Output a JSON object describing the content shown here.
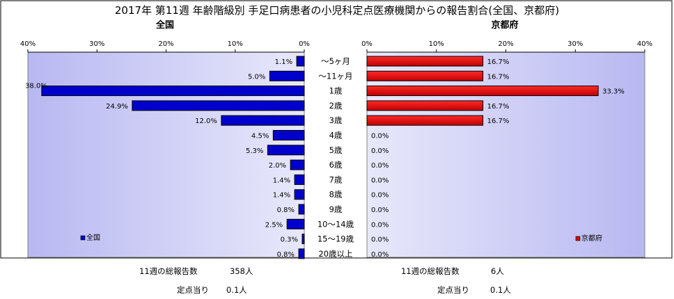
{
  "title": "2017年 第11週 年齢階級別 手足口病患者の小児科定点医療機関からの報告割合(全国、京都府)",
  "chart_data": {
    "type": "bar",
    "orientation": "horizontal",
    "categories": [
      "～5ヶ月",
      "～11ヶ月",
      "1歳",
      "2歳",
      "3歳",
      "4歳",
      "5歳",
      "6歳",
      "7歳",
      "8歳",
      "9歳",
      "10～14歳",
      "15～19歳",
      "20歳以上"
    ],
    "axis_ticks": [
      "0%",
      "10%",
      "20%",
      "30%",
      "40%"
    ],
    "xlim": [
      0,
      40
    ],
    "grid": false,
    "panels": [
      {
        "subtitle": "全国",
        "legend": "全国",
        "legend_position": "bottom-left",
        "color": "#0000cc",
        "values": [
          1.1,
          5.0,
          38.0,
          24.9,
          12.0,
          4.5,
          5.3,
          2.0,
          1.4,
          1.4,
          0.8,
          2.5,
          0.3,
          0.8
        ],
        "value_labels": [
          "1.1%",
          "5.0%",
          "38.0%",
          "24.9%",
          "12.0%",
          "4.5%",
          "5.3%",
          "2.0%",
          "1.4%",
          "1.4%",
          "0.8%",
          "2.5%",
          "0.3%",
          "0.8%"
        ],
        "footer": {
          "total_label": "11週の総報告数",
          "total_value": "358人",
          "per_site_label": "定点当り",
          "per_site_value": "0.1人"
        }
      },
      {
        "subtitle": "京都府",
        "legend": "京都府",
        "legend_position": "bottom-right",
        "color": "#dd0000",
        "values": [
          16.7,
          16.7,
          33.3,
          16.7,
          16.7,
          0,
          0,
          0,
          0,
          0,
          0,
          0,
          0,
          0
        ],
        "value_labels": [
          "16.7%",
          "16.7%",
          "33.3%",
          "16.7%",
          "16.7%",
          "0.0%",
          "0.0%",
          "0.0%",
          "0.0%",
          "0.0%",
          "0.0%",
          "0.0%",
          "0.0%",
          "0.0%"
        ],
        "footer": {
          "total_label": "11週の総報告数",
          "total_value": "6人",
          "per_site_label": "定点当り",
          "per_site_value": "0.1人"
        }
      }
    ]
  }
}
